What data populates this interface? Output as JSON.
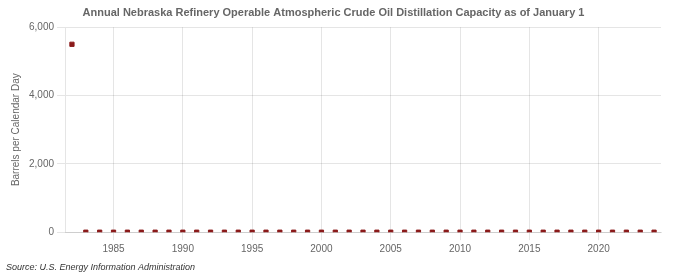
{
  "chart_data": {
    "type": "scatter",
    "title": "Annual Nebraska Refinery Operable Atmospheric Crude Oil Distillation Capacity as of January 1",
    "ylabel": "Barrels per Calendar Day",
    "source": "Source: U.S. Energy Information Administration",
    "x": [
      1982,
      1983,
      1984,
      1985,
      1986,
      1987,
      1988,
      1989,
      1990,
      1991,
      1992,
      1993,
      1994,
      1995,
      1996,
      1997,
      1998,
      1999,
      2000,
      2001,
      2002,
      2003,
      2004,
      2005,
      2006,
      2007,
      2008,
      2009,
      2010,
      2011,
      2012,
      2013,
      2014,
      2015,
      2016,
      2017,
      2018,
      2019,
      2020,
      2021,
      2022,
      2023,
      2024
    ],
    "values": [
      5500,
      0,
      0,
      0,
      0,
      0,
      0,
      0,
      0,
      0,
      0,
      0,
      0,
      0,
      0,
      0,
      0,
      0,
      0,
      0,
      0,
      0,
      0,
      0,
      0,
      0,
      0,
      0,
      0,
      0,
      0,
      0,
      0,
      0,
      0,
      0,
      0,
      0,
      0,
      0,
      0,
      0,
      0
    ],
    "color": "#8b1a1a",
    "marker": "square",
    "xlim": [
      1981.5,
      2024.5
    ],
    "xticks": [
      1985,
      1990,
      1995,
      2000,
      2005,
      2010,
      2015,
      2020
    ],
    "ylim": [
      0,
      6000
    ],
    "yticks": [
      0,
      {
        "value": 2000,
        "label": "2,000"
      },
      {
        "value": 4000,
        "label": "4,000"
      },
      {
        "value": 6000,
        "label": "6,000"
      }
    ],
    "grid": true
  }
}
